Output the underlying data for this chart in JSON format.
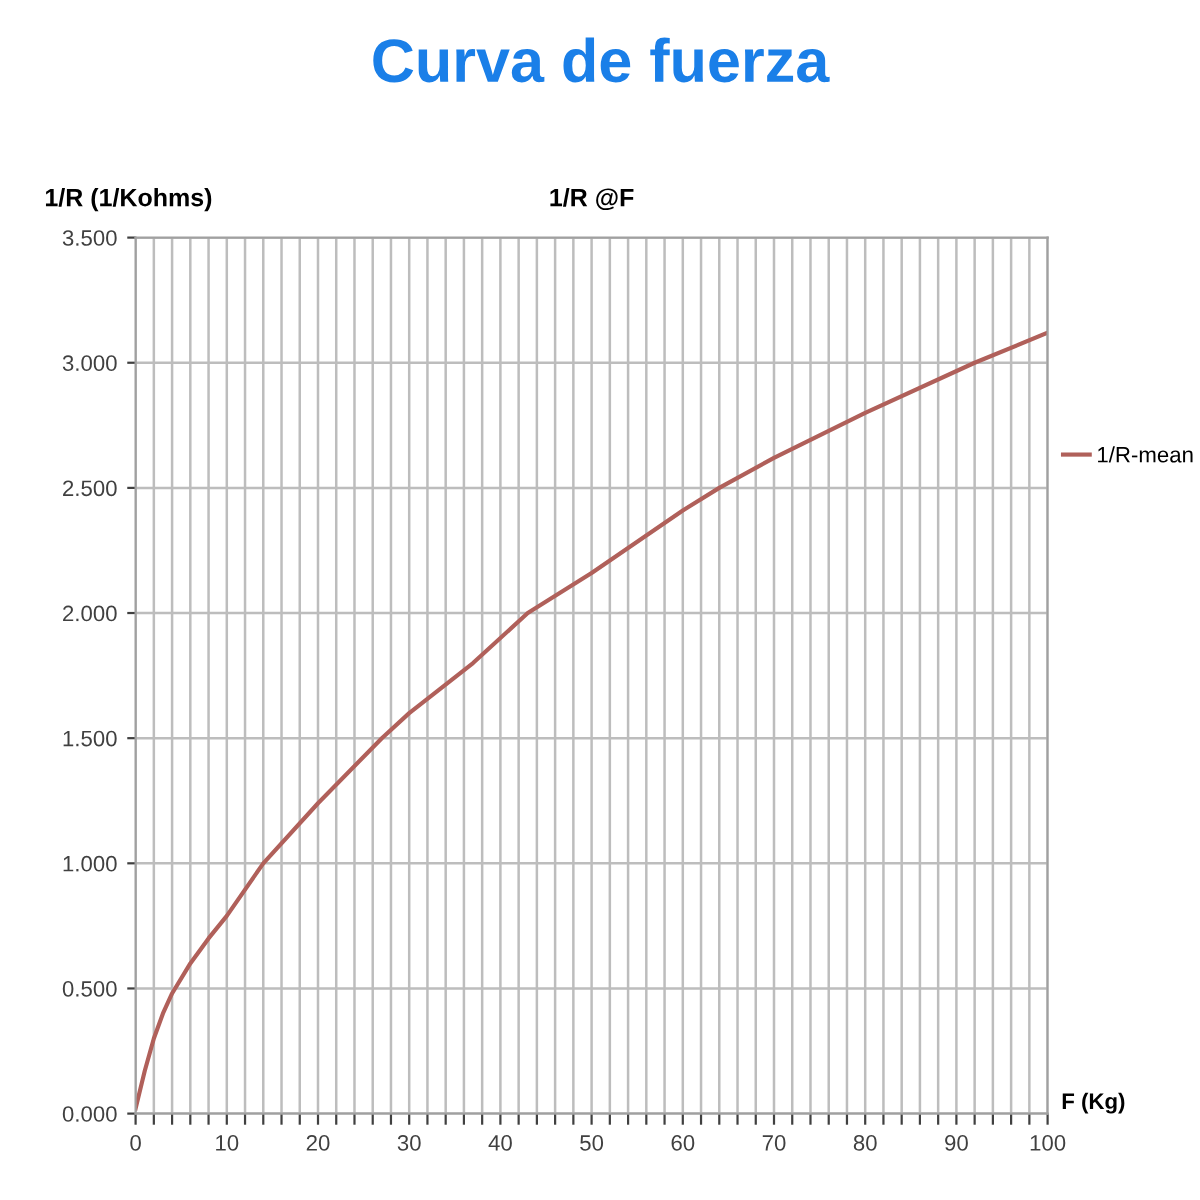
{
  "chart_data": {
    "type": "line",
    "title": "Curva de fuerza",
    "subtitle": "1/R @F",
    "xlabel": "F (Kg)",
    "ylabel": "1/R (1/Kohms)",
    "x": [
      0,
      1,
      2,
      3,
      4,
      6,
      8,
      10,
      14,
      20,
      27,
      30,
      37,
      43,
      50,
      60,
      64,
      70,
      80,
      92,
      100
    ],
    "series": [
      {
        "name": "1/R-mean",
        "color": "#b0605a",
        "values": [
          0.02,
          0.17,
          0.3,
          0.4,
          0.48,
          0.6,
          0.7,
          0.79,
          1.0,
          1.24,
          1.5,
          1.6,
          1.8,
          2.0,
          2.16,
          2.41,
          2.5,
          2.62,
          2.8,
          3.0,
          3.12
        ]
      }
    ],
    "xlim": [
      0,
      100
    ],
    "ylim": [
      0,
      3.5
    ],
    "xticks": [
      0,
      {
        "value": 2,
        "label": null
      },
      {
        "value": 4,
        "label": null
      },
      {
        "value": 6,
        "label": null
      },
      {
        "value": 8,
        "label": null
      },
      10,
      {
        "value": 12,
        "label": null
      },
      {
        "value": 14,
        "label": null
      },
      {
        "value": 16,
        "label": null
      },
      {
        "value": 18,
        "label": null
      },
      20,
      {
        "value": 22,
        "label": null
      },
      {
        "value": 24,
        "label": null
      },
      {
        "value": 26,
        "label": null
      },
      {
        "value": 28,
        "label": null
      },
      30,
      {
        "value": 32,
        "label": null
      },
      {
        "value": 34,
        "label": null
      },
      {
        "value": 36,
        "label": null
      },
      {
        "value": 38,
        "label": null
      },
      40,
      {
        "value": 42,
        "label": null
      },
      {
        "value": 44,
        "label": null
      },
      {
        "value": 46,
        "label": null
      },
      {
        "value": 48,
        "label": null
      },
      50,
      {
        "value": 52,
        "label": null
      },
      {
        "value": 54,
        "label": null
      },
      {
        "value": 56,
        "label": null
      },
      {
        "value": 58,
        "label": null
      },
      60,
      {
        "value": 62,
        "label": null
      },
      {
        "value": 64,
        "label": null
      },
      {
        "value": 66,
        "label": null
      },
      {
        "value": 68,
        "label": null
      },
      70,
      {
        "value": 72,
        "label": null
      },
      {
        "value": 74,
        "label": null
      },
      {
        "value": 76,
        "label": null
      },
      {
        "value": 78,
        "label": null
      },
      80,
      {
        "value": 82,
        "label": null
      },
      {
        "value": 84,
        "label": null
      },
      {
        "value": 86,
        "label": null
      },
      {
        "value": 88,
        "label": null
      },
      90,
      {
        "value": 92,
        "label": null
      },
      {
        "value": 94,
        "label": null
      },
      {
        "value": 96,
        "label": null
      },
      {
        "value": 98,
        "label": null
      },
      100
    ],
    "yticks": [
      {
        "value": 0,
        "label": "0.000"
      },
      {
        "value": 0.5,
        "label": "0.500"
      },
      {
        "value": 1,
        "label": "1.000"
      },
      {
        "value": 1.5,
        "label": "1.500"
      },
      {
        "value": 2,
        "label": "2.000"
      },
      {
        "value": 2.5,
        "label": "2.500"
      },
      {
        "value": 3,
        "label": "3.000"
      },
      {
        "value": 3.5,
        "label": "3.500"
      }
    ],
    "grid": true,
    "legend": "right",
    "marker": "none",
    "line_style": "solid"
  }
}
